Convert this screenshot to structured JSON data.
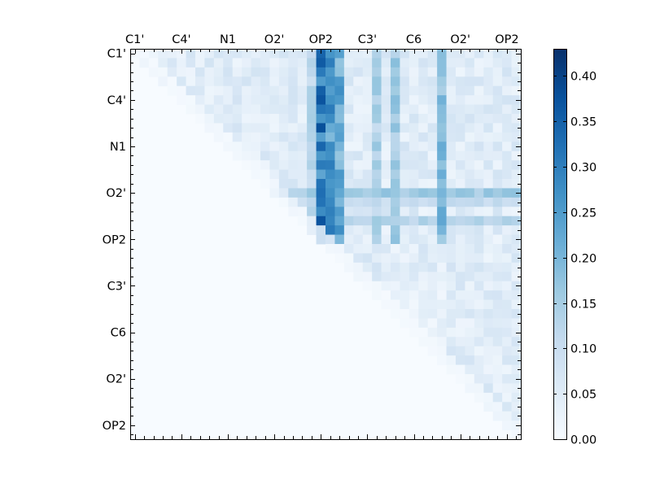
{
  "chart_data": {
    "type": "heatmap",
    "title": "",
    "xlabel": "",
    "ylabel": "",
    "size": 42,
    "x_tick_labels": [
      "C1'",
      "C4'",
      "N1",
      "O2'",
      "OP2",
      "C3'",
      "C6",
      "O2'",
      "OP2"
    ],
    "x_tick_indices": [
      0,
      5,
      10,
      15,
      20,
      25,
      30,
      35,
      40
    ],
    "y_tick_labels": [
      "C1'",
      "C4'",
      "N1",
      "O2'",
      "OP2",
      "C3'",
      "C6",
      "O2'",
      "OP2"
    ],
    "y_tick_indices": [
      0,
      5,
      10,
      15,
      20,
      25,
      30,
      35,
      40
    ],
    "tick_position_x": "top",
    "tick_position_y": "left",
    "masked_region": "lower-left triangle (row > col) shown at minimum value",
    "colorbar": {
      "range": [
        0.0,
        0.43
      ],
      "tick_labels": [
        "0.00",
        "0.05",
        "0.10",
        "0.15",
        "0.20",
        "0.25",
        "0.30",
        "0.35",
        "0.40"
      ],
      "tick_values": [
        0.0,
        0.05,
        0.1,
        0.15,
        0.2,
        0.25,
        0.3,
        0.35,
        0.4
      ],
      "colormap": "Blues",
      "colors": [
        "#f7fbff",
        "#deebf7",
        "#c6dbef",
        "#9ecae1",
        "#6baed6",
        "#4292c6",
        "#2171b5",
        "#08519c",
        "#08306b"
      ]
    },
    "highlight_columns": {
      "col_19": 0.15,
      "col_20": 0.38,
      "col_21": 0.32,
      "col_22": 0.28,
      "col_26": 0.17,
      "col_28": 0.19,
      "col_33": 0.24
    },
    "highlight_rows": {
      "row_15": 0.18,
      "row_16": 0.12,
      "row_18": 0.15
    }
  }
}
